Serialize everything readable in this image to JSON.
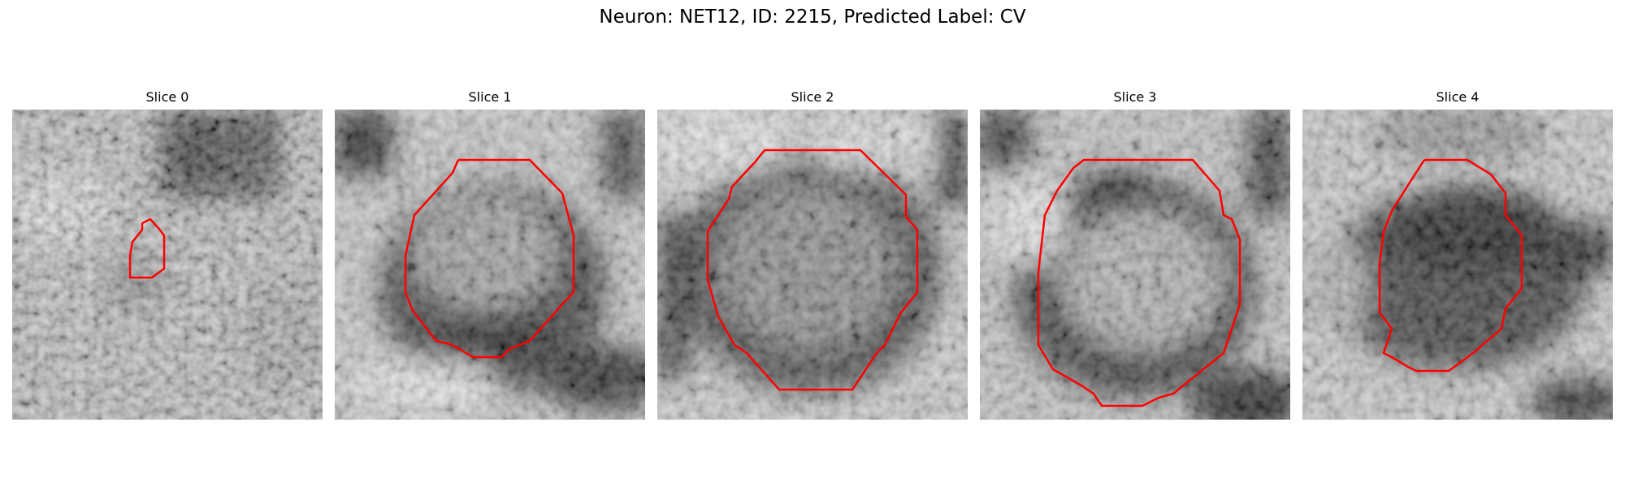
{
  "title": "Neuron: NET12, ID: 2215, Predicted Label: CV",
  "contour_color": "#ff0000",
  "slices": [
    {
      "title": "Slice 0"
    },
    {
      "title": "Slice 1"
    },
    {
      "title": "Slice 2"
    },
    {
      "title": "Slice 3"
    },
    {
      "title": "Slice 4"
    }
  ]
}
